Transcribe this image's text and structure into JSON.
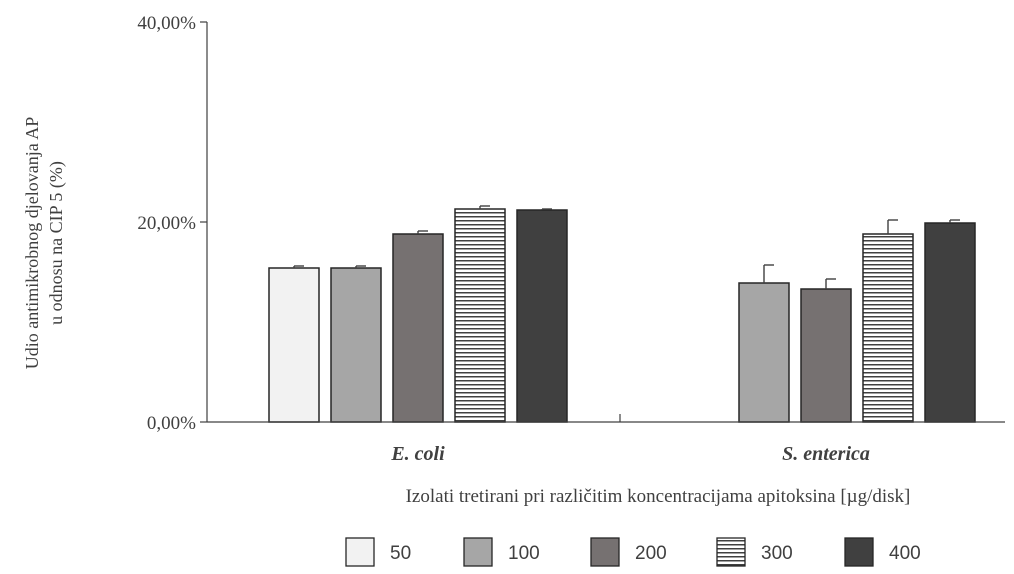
{
  "chart_data": {
    "type": "bar",
    "title": "",
    "xlabel": "Izolati tretirani pri različitim koncentracijama apitoksina [µg/disk]",
    "ylabel_lines": [
      "Udio antimikrobnog djelovanja AP",
      "u odnosu na CIP 5  (%)"
    ],
    "ylim": [
      0,
      40
    ],
    "yticks": [
      0,
      20,
      40
    ],
    "ytick_labels": [
      "0,00%",
      "20,00%",
      "40,00%"
    ],
    "categories": [
      "E. coli",
      "S. enterica"
    ],
    "legend_position": "bottom",
    "grid": false,
    "series": [
      {
        "name": "50",
        "values": [
          15.4,
          0
        ],
        "errors": [
          0.2,
          0
        ],
        "fill": "#f2f2f2",
        "pattern": "solid"
      },
      {
        "name": "100",
        "values": [
          15.4,
          13.9
        ],
        "errors": [
          0.2,
          1.8
        ],
        "fill": "#a6a6a6",
        "pattern": "solid"
      },
      {
        "name": "200",
        "values": [
          18.8,
          13.3
        ],
        "errors": [
          0.3,
          1.0
        ],
        "fill": "#767171",
        "pattern": "solid"
      },
      {
        "name": "300",
        "values": [
          21.3,
          18.8
        ],
        "errors": [
          0.3,
          1.4
        ],
        "fill": "#ffffff",
        "pattern": "horizontal-stripes"
      },
      {
        "name": "400",
        "values": [
          21.2,
          19.9
        ],
        "errors": [
          0.1,
          0.3
        ],
        "fill": "#404040",
        "pattern": "solid"
      }
    ]
  }
}
